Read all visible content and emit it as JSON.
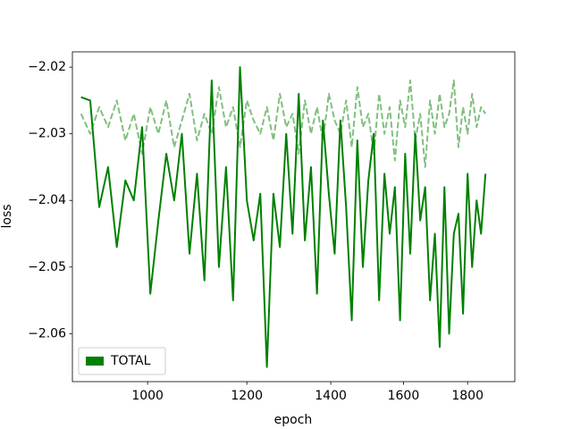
{
  "chart_data": {
    "type": "line",
    "xlabel": "epoch",
    "ylabel": "loss",
    "x": [
      885,
      900,
      915,
      930,
      945,
      960,
      975,
      990,
      1005,
      1020,
      1035,
      1050,
      1065,
      1080,
      1095,
      1110,
      1125,
      1140,
      1155,
      1170,
      1185,
      1200,
      1215,
      1230,
      1245,
      1260,
      1275,
      1290,
      1305,
      1320,
      1335,
      1350,
      1365,
      1380,
      1395,
      1410,
      1425,
      1440,
      1455,
      1470,
      1485,
      1500,
      1515,
      1530,
      1545,
      1560,
      1575,
      1590,
      1605,
      1620,
      1635,
      1650,
      1665,
      1680,
      1695,
      1710,
      1725,
      1740,
      1755,
      1770,
      1785,
      1800,
      1815,
      1830,
      1845,
      1860
    ],
    "series": [
      {
        "name": "TOTAL",
        "color": "#008000",
        "style": "solid",
        "values": [
          -2.0245,
          -2.025,
          -2.041,
          -2.035,
          -2.047,
          -2.037,
          -2.04,
          -2.029,
          -2.054,
          -2.043,
          -2.033,
          -2.04,
          -2.03,
          -2.048,
          -2.036,
          -2.052,
          -2.022,
          -2.05,
          -2.035,
          -2.055,
          -2.02,
          -2.04,
          -2.046,
          -2.039,
          -2.065,
          -2.039,
          -2.047,
          -2.03,
          -2.045,
          -2.024,
          -2.046,
          -2.035,
          -2.054,
          -2.028,
          -2.039,
          -2.048,
          -2.028,
          -2.041,
          -2.058,
          -2.031,
          -2.05,
          -2.037,
          -2.03,
          -2.055,
          -2.036,
          -2.045,
          -2.038,
          -2.058,
          -2.033,
          -2.048,
          -2.03,
          -2.043,
          -2.038,
          -2.055,
          -2.045,
          -2.062,
          -2.038,
          -2.06,
          -2.045,
          -2.042,
          -2.057,
          -2.036,
          -2.05,
          -2.04,
          -2.045,
          -2.036
        ]
      },
      {
        "color": "#80c080",
        "style": "dashed",
        "values": [
          -2.027,
          -2.03,
          -2.026,
          -2.029,
          -2.025,
          -2.031,
          -2.027,
          -2.033,
          -2.026,
          -2.03,
          -2.025,
          -2.032,
          -2.028,
          -2.024,
          -2.031,
          -2.027,
          -2.03,
          -2.023,
          -2.029,
          -2.026,
          -2.032,
          -2.025,
          -2.028,
          -2.03,
          -2.026,
          -2.031,
          -2.024,
          -2.029,
          -2.027,
          -2.033,
          -2.025,
          -2.03,
          -2.026,
          -2.031,
          -2.024,
          -2.028,
          -2.03,
          -2.025,
          -2.032,
          -2.023,
          -2.029,
          -2.027,
          -2.033,
          -2.024,
          -2.03,
          -2.026,
          -2.034,
          -2.025,
          -2.029,
          -2.022,
          -2.031,
          -2.027,
          -2.035,
          -2.025,
          -2.03,
          -2.024,
          -2.029,
          -2.027,
          -2.022,
          -2.032,
          -2.026,
          -2.03,
          -2.024,
          -2.029,
          -2.026,
          -2.027
        ]
      }
    ],
    "xscale": "log",
    "xlim": [
      871,
      1963
    ],
    "xticks": [
      1000,
      1200,
      1400,
      1600,
      1800
    ],
    "ylim": [
      -2.0672,
      -2.0177
    ],
    "yticks": [
      {
        "value": -2.06,
        "label": "−2.06"
      },
      {
        "value": -2.05,
        "label": "−2.05"
      },
      {
        "value": -2.04,
        "label": "−2.04"
      },
      {
        "value": -2.03,
        "label": "−2.03"
      },
      {
        "value": -2.02,
        "label": "−2.02"
      }
    ],
    "legend": "lower left",
    "grid": false
  }
}
